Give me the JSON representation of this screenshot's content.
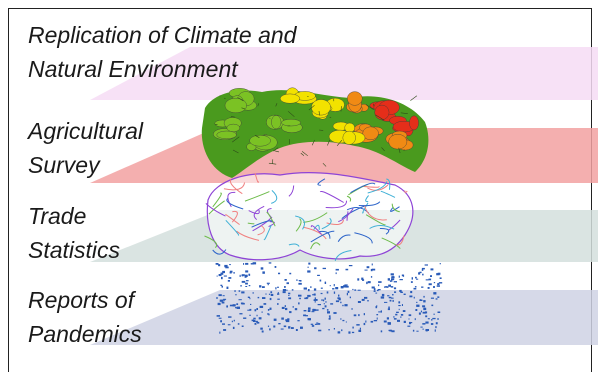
{
  "layers": [
    {
      "id": "climate",
      "label_lines": [
        "Replication of Climate and",
        "Natural Environment"
      ],
      "plane_color": "#f6dcf4",
      "map_style": "none"
    },
    {
      "id": "agriculture",
      "label_lines": [
        "Agricultural",
        "Survey"
      ],
      "plane_color": "#f2a1a1",
      "map_style": "choropleth"
    },
    {
      "id": "trade",
      "label_lines": [
        "Trade",
        "Statistics"
      ],
      "plane_color": "#d3dfdd",
      "map_style": "outline-network"
    },
    {
      "id": "pandemics",
      "label_lines": [
        "Reports of",
        "Pandemics"
      ],
      "plane_color": "#cfd2e4",
      "map_style": "dot-points"
    }
  ],
  "map_colors": {
    "agri_green": "#4a9a1e",
    "agri_lime": "#7bc224",
    "agri_yellow": "#f2e200",
    "agri_orange": "#f08a14",
    "agri_red": "#e52e1a",
    "trade_lines": [
      "#8e44d6",
      "#3fb0d6",
      "#f08080",
      "#6dbb4a",
      "#2b63c9"
    ],
    "pandemic_blue": "#2a5bb8"
  }
}
